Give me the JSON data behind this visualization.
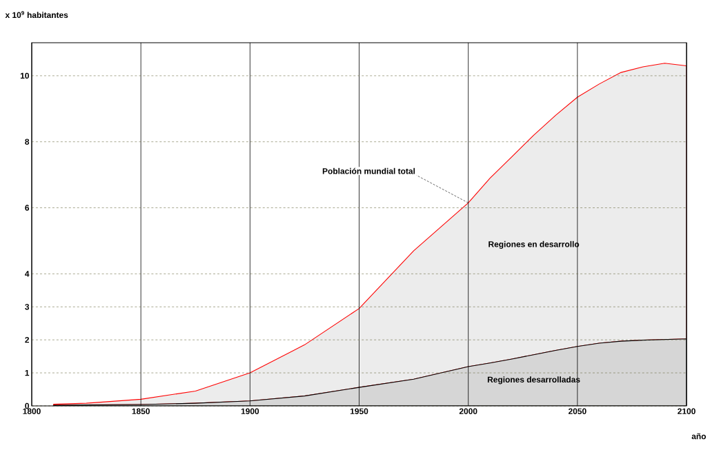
{
  "chart_data": {
    "type": "area",
    "stacked": true,
    "ylabel": "x 10$^{9}$ habitantes",
    "xlabel": "año",
    "x": [
      1810,
      1825,
      1850,
      1875,
      1900,
      1925,
      1950,
      1975,
      2000,
      2010,
      2020,
      2030,
      2040,
      2050,
      2060,
      2070,
      2080,
      2090,
      2100
    ],
    "series": [
      {
        "name": "Regiones desarrolladas",
        "color": "#d6d6d6",
        "values": [
          0.02,
          0.03,
          0.04,
          0.08,
          0.15,
          0.3,
          0.56,
          0.81,
          1.19,
          1.3,
          1.42,
          1.55,
          1.68,
          1.8,
          1.9,
          1.96,
          1.99,
          2.01,
          2.03
        ]
      },
      {
        "name": "Regiones en desarrollo",
        "color": "#ececec",
        "values": [
          0.03,
          0.05,
          0.16,
          0.37,
          0.85,
          1.55,
          2.39,
          3.89,
          4.96,
          5.6,
          6.13,
          6.65,
          7.12,
          7.55,
          7.85,
          8.14,
          8.28,
          8.37,
          8.27
        ]
      }
    ],
    "xlim": [
      1800,
      2100
    ],
    "xticks": [
      1800,
      1850,
      1900,
      1950,
      2000,
      2050,
      2100
    ],
    "ylim": [
      0,
      11
    ],
    "yticks": [
      0,
      1,
      2,
      3,
      4,
      6,
      8,
      10
    ],
    "grid": true,
    "legend": false,
    "marker": "none",
    "line_style": "solid",
    "annotations": [
      {
        "text": "Población mundial total",
        "x": 2000,
        "y": 6.15
      }
    ]
  }
}
